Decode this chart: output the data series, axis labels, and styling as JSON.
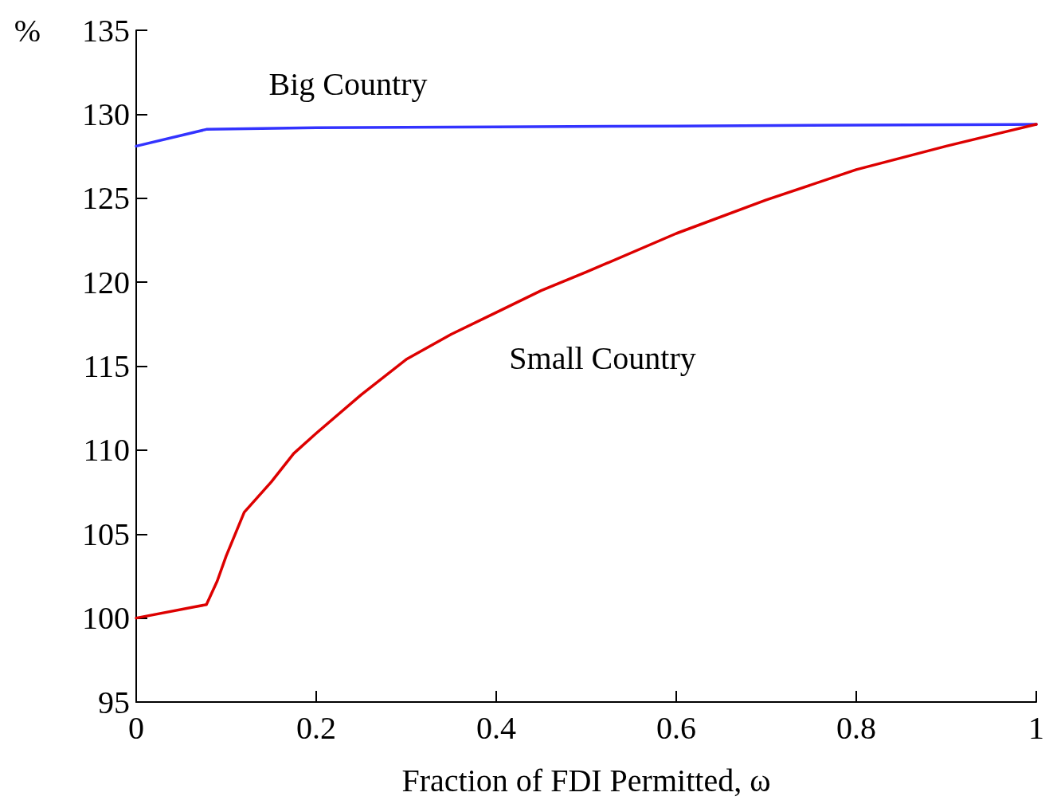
{
  "chart_data": {
    "type": "line",
    "xlabel": "Fraction of FDI Permitted, ω",
    "ylabel": "%",
    "xlim": [
      0,
      1
    ],
    "xticks": [
      0,
      0.2,
      0.4,
      0.6,
      0.8,
      1
    ],
    "ylim": [
      95,
      135
    ],
    "yticks": [
      95,
      100,
      105,
      110,
      115,
      120,
      125,
      130,
      135
    ],
    "grid": false,
    "legend": false,
    "marker": "none",
    "line_style": "solid",
    "series": [
      {
        "name": "Big Country",
        "color": "#3333ff",
        "x": [
          0,
          0.078,
          0.2,
          0.4,
          0.6,
          0.8,
          1
        ],
        "values": [
          128.1,
          129.1,
          129.2,
          129.25,
          129.3,
          129.35,
          129.4
        ]
      },
      {
        "name": "Small Country",
        "color": "#dd0000",
        "x": [
          0,
          0.078,
          0.09,
          0.1,
          0.12,
          0.15,
          0.175,
          0.2,
          0.25,
          0.3,
          0.35,
          0.4,
          0.45,
          0.5,
          0.6,
          0.7,
          0.8,
          0.9,
          1
        ],
        "values": [
          100,
          100.8,
          102.2,
          103.7,
          106.3,
          108.1,
          109.8,
          111.0,
          113.3,
          115.4,
          116.9,
          118.2,
          119.5,
          120.6,
          122.9,
          124.9,
          126.7,
          128.1,
          129.4
        ]
      }
    ]
  }
}
